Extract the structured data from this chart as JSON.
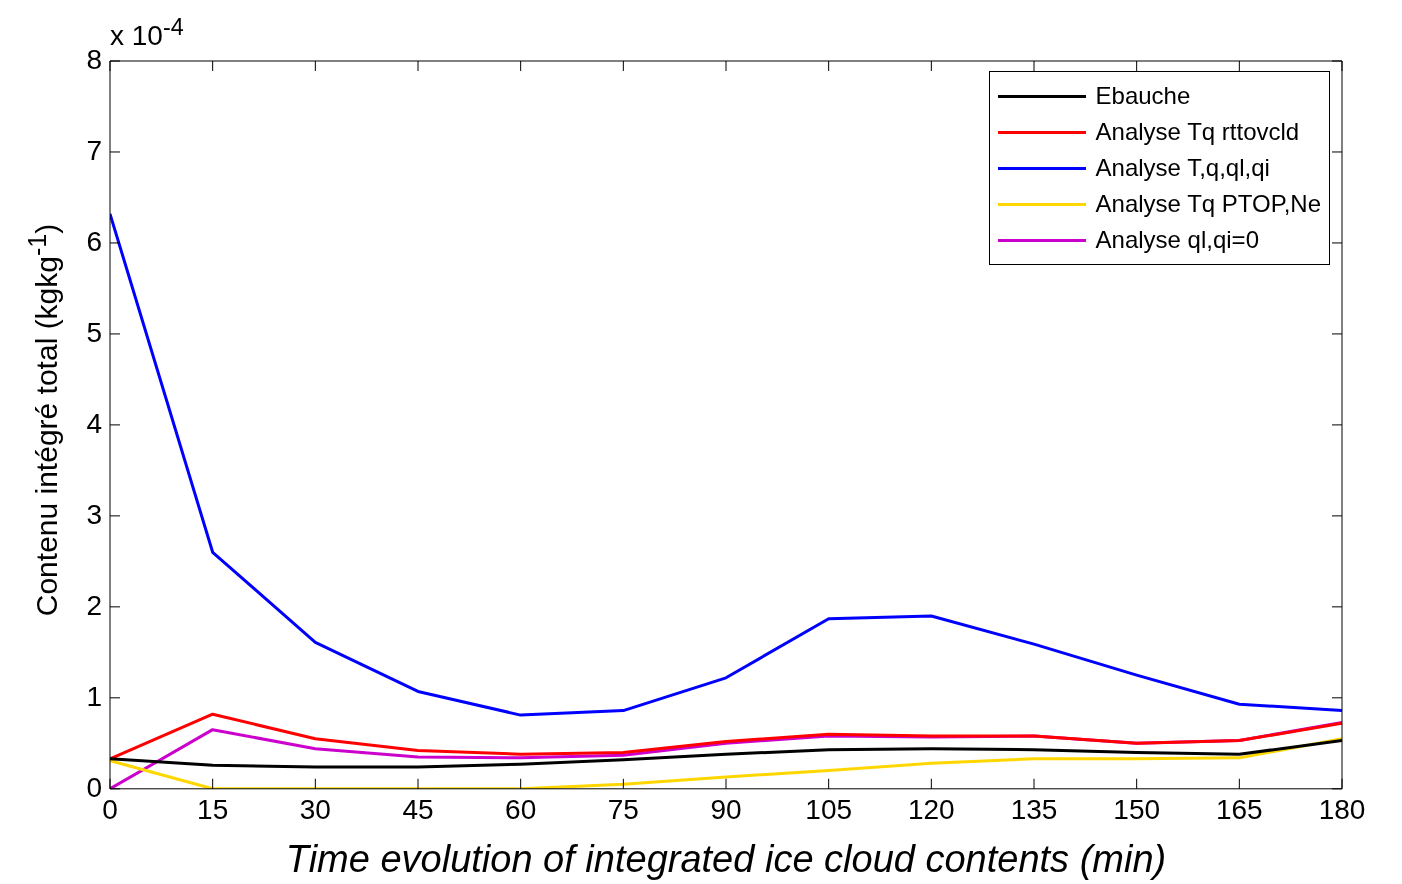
{
  "chart_data": {
    "type": "line",
    "xlabel": "Time evolution of integrated ice cloud contents (min)",
    "ylabel": "Contenu intégré total (kgkg$^{-1}$)",
    "annotations": [
      "x 10$^{-4}$"
    ],
    "x": [
      0,
      15,
      30,
      45,
      60,
      75,
      90,
      105,
      120,
      135,
      150,
      165,
      180
    ],
    "xlim": [
      0,
      180
    ],
    "xticks": [
      0,
      15,
      30,
      45,
      60,
      75,
      90,
      105,
      120,
      135,
      150,
      165,
      180
    ],
    "ylim": [
      0,
      8
    ],
    "yticks": [
      0,
      1,
      2,
      3,
      4,
      5,
      6,
      7,
      8
    ],
    "grid": false,
    "legend": "top right",
    "marker": "none",
    "line_style": "solid",
    "series": [
      {
        "name": "Ebauche",
        "color": "#000000",
        "values": [
          0.33,
          0.26,
          0.24,
          0.24,
          0.27,
          0.32,
          0.38,
          0.43,
          0.44,
          0.43,
          0.4,
          0.38,
          0.53
        ]
      },
      {
        "name": "Analyse Tq rttovcld",
        "color": "#ff0000",
        "values": [
          0.33,
          0.82,
          0.55,
          0.42,
          0.38,
          0.4,
          0.52,
          0.6,
          0.58,
          0.58,
          0.5,
          0.53,
          0.72
        ]
      },
      {
        "name": "Analyse T,q,ql,qi",
        "color": "#0000ff",
        "values": [
          6.32,
          2.6,
          1.61,
          1.07,
          0.81,
          0.86,
          1.22,
          1.87,
          1.9,
          1.59,
          1.25,
          0.93,
          0.86
        ]
      },
      {
        "name": "Analyse Tq PTOP,Ne",
        "color": "#ffd700",
        "values": [
          0.31,
          0,
          0,
          0,
          0,
          0.05,
          0.13,
          0.2,
          0.28,
          0.33,
          0.33,
          0.34,
          0.55
        ]
      },
      {
        "name": "Analyse ql,qi=0",
        "color": "#cc00cc",
        "values": [
          0,
          0.65,
          0.44,
          0.35,
          0.34,
          0.37,
          0.5,
          0.58,
          0.57,
          0.58,
          0.5,
          0.53,
          0.73
        ]
      }
    ]
  }
}
